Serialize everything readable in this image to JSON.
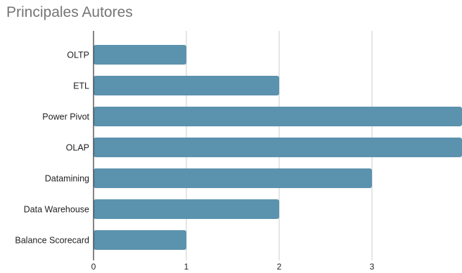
{
  "chart_data": {
    "type": "bar",
    "orientation": "horizontal",
    "title": "Principales Autores",
    "categories": [
      "OLTP",
      "ETL",
      "Power Pivot",
      "OLAP",
      "Datamining",
      "Data Warehouse",
      "Balance Scorecard"
    ],
    "values": [
      1,
      2,
      4,
      4,
      3,
      2,
      1
    ],
    "xlim": [
      0,
      3.97
    ],
    "xticks": [
      "0",
      "1",
      "2",
      "3"
    ],
    "xlabel": "",
    "ylabel": "",
    "grid": true,
    "bar_color": "#5b92ae",
    "grid_color": "#cccccc",
    "axis_color": "#333333"
  }
}
